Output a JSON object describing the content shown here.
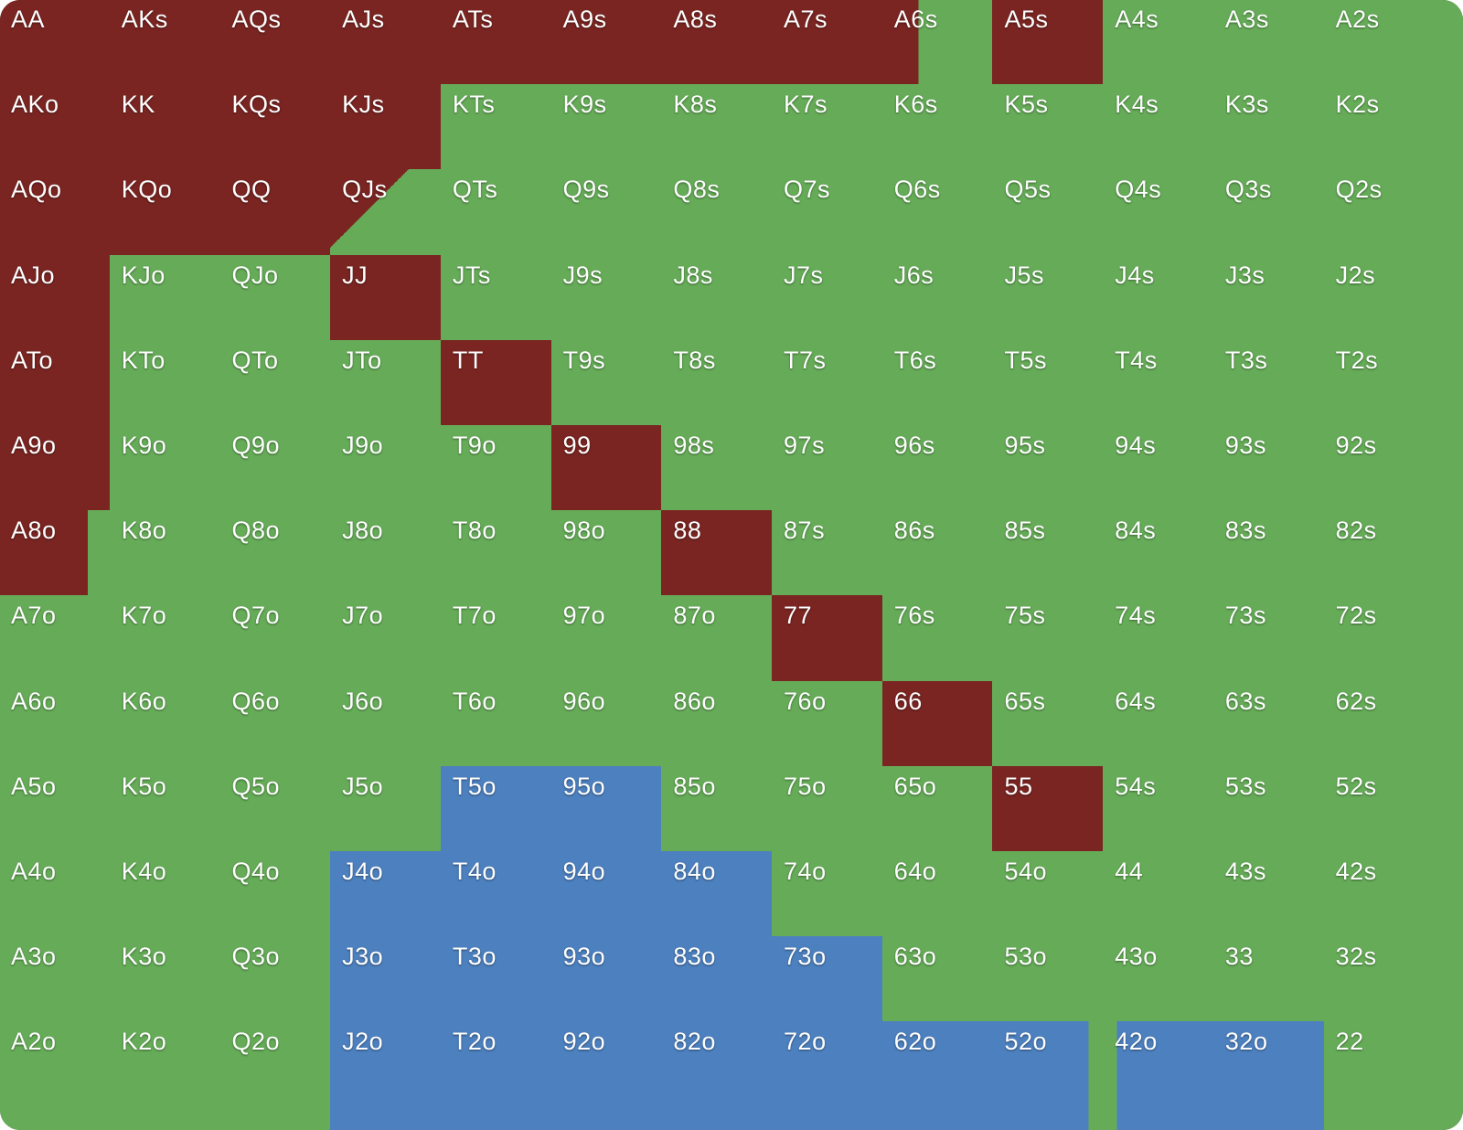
{
  "colors": {
    "red": "#7a2522",
    "green": "#66ac58",
    "blue": "#4d80bf"
  },
  "chart_data": {
    "type": "heatmap",
    "ranks": [
      "A",
      "K",
      "Q",
      "J",
      "T",
      "9",
      "8",
      "7",
      "6",
      "5",
      "4",
      "3",
      "2"
    ],
    "legend_colors": {
      "red": "#7a2522",
      "green": "#66ac58",
      "blue": "#4d80bf"
    },
    "rows": [
      {
        "cells": [
          {
            "h": "AA",
            "c": "red"
          },
          {
            "h": "AKs",
            "c": "red"
          },
          {
            "h": "AQs",
            "c": "red"
          },
          {
            "h": "AJs",
            "c": "red"
          },
          {
            "h": "ATs",
            "c": "red"
          },
          {
            "h": "A9s",
            "c": "red"
          },
          {
            "h": "A8s",
            "c": "red"
          },
          {
            "h": "A7s",
            "c": "red"
          },
          {
            "h": "A6s",
            "mix": [
              {
                "c": "red",
                "pct": 33
              },
              {
                "c": "green",
                "pct": 67
              }
            ],
            "angle": 90
          },
          {
            "h": "A5s",
            "c": "red"
          },
          {
            "h": "A4s",
            "c": "green"
          },
          {
            "h": "A3s",
            "c": "green"
          },
          {
            "h": "A2s",
            "c": "green"
          }
        ]
      },
      {
        "cells": [
          {
            "h": "AKo",
            "c": "red"
          },
          {
            "h": "KK",
            "c": "red"
          },
          {
            "h": "KQs",
            "c": "red"
          },
          {
            "h": "KJs",
            "c": "red"
          },
          {
            "h": "KTs",
            "c": "green"
          },
          {
            "h": "K9s",
            "c": "green"
          },
          {
            "h": "K8s",
            "c": "green"
          },
          {
            "h": "K7s",
            "c": "green"
          },
          {
            "h": "K6s",
            "c": "green"
          },
          {
            "h": "K5s",
            "c": "green"
          },
          {
            "h": "K4s",
            "c": "green"
          },
          {
            "h": "K3s",
            "c": "green"
          },
          {
            "h": "K2s",
            "c": "green"
          }
        ]
      },
      {
        "cells": [
          {
            "h": "AQo",
            "c": "red"
          },
          {
            "h": "KQo",
            "c": "red"
          },
          {
            "h": "QQ",
            "c": "red"
          },
          {
            "h": "QJs",
            "mix": [
              {
                "c": "red",
                "pct": 40
              },
              {
                "c": "green",
                "pct": 60
              }
            ],
            "angle": 135
          },
          {
            "h": "QTs",
            "c": "green"
          },
          {
            "h": "Q9s",
            "c": "green"
          },
          {
            "h": "Q8s",
            "c": "green"
          },
          {
            "h": "Q7s",
            "c": "green"
          },
          {
            "h": "Q6s",
            "c": "green"
          },
          {
            "h": "Q5s",
            "c": "green"
          },
          {
            "h": "Q4s",
            "c": "green"
          },
          {
            "h": "Q3s",
            "c": "green"
          },
          {
            "h": "Q2s",
            "c": "green"
          }
        ]
      },
      {
        "cells": [
          {
            "h": "AJo",
            "c": "red"
          },
          {
            "h": "KJo",
            "c": "green"
          },
          {
            "h": "QJo",
            "c": "green"
          },
          {
            "h": "JJ",
            "c": "red"
          },
          {
            "h": "JTs",
            "c": "green"
          },
          {
            "h": "J9s",
            "c": "green"
          },
          {
            "h": "J8s",
            "c": "green"
          },
          {
            "h": "J7s",
            "c": "green"
          },
          {
            "h": "J6s",
            "c": "green"
          },
          {
            "h": "J5s",
            "c": "green"
          },
          {
            "h": "J4s",
            "c": "green"
          },
          {
            "h": "J3s",
            "c": "green"
          },
          {
            "h": "J2s",
            "c": "green"
          }
        ]
      },
      {
        "cells": [
          {
            "h": "ATo",
            "c": "red"
          },
          {
            "h": "KTo",
            "c": "green"
          },
          {
            "h": "QTo",
            "c": "green"
          },
          {
            "h": "JTo",
            "c": "green"
          },
          {
            "h": "TT",
            "c": "red"
          },
          {
            "h": "T9s",
            "c": "green"
          },
          {
            "h": "T8s",
            "c": "green"
          },
          {
            "h": "T7s",
            "c": "green"
          },
          {
            "h": "T6s",
            "c": "green"
          },
          {
            "h": "T5s",
            "c": "green"
          },
          {
            "h": "T4s",
            "c": "green"
          },
          {
            "h": "T3s",
            "c": "green"
          },
          {
            "h": "T2s",
            "c": "green"
          }
        ]
      },
      {
        "cells": [
          {
            "h": "A9o",
            "c": "red"
          },
          {
            "h": "K9o",
            "c": "green"
          },
          {
            "h": "Q9o",
            "c": "green"
          },
          {
            "h": "J9o",
            "c": "green"
          },
          {
            "h": "T9o",
            "c": "green"
          },
          {
            "h": "99",
            "c": "red"
          },
          {
            "h": "98s",
            "c": "green"
          },
          {
            "h": "97s",
            "c": "green"
          },
          {
            "h": "96s",
            "c": "green"
          },
          {
            "h": "95s",
            "c": "green"
          },
          {
            "h": "94s",
            "c": "green"
          },
          {
            "h": "93s",
            "c": "green"
          },
          {
            "h": "92s",
            "c": "green"
          }
        ]
      },
      {
        "cells": [
          {
            "h": "A8o",
            "mix": [
              {
                "c": "red",
                "pct": 80
              },
              {
                "c": "green",
                "pct": 20
              }
            ],
            "angle": 90
          },
          {
            "h": "K8o",
            "c": "green"
          },
          {
            "h": "Q8o",
            "c": "green"
          },
          {
            "h": "J8o",
            "c": "green"
          },
          {
            "h": "T8o",
            "c": "green"
          },
          {
            "h": "98o",
            "c": "green"
          },
          {
            "h": "88",
            "c": "red"
          },
          {
            "h": "87s",
            "c": "green"
          },
          {
            "h": "86s",
            "c": "green"
          },
          {
            "h": "85s",
            "c": "green"
          },
          {
            "h": "84s",
            "c": "green"
          },
          {
            "h": "83s",
            "c": "green"
          },
          {
            "h": "82s",
            "c": "green"
          }
        ]
      },
      {
        "cells": [
          {
            "h": "A7o",
            "c": "green"
          },
          {
            "h": "K7o",
            "c": "green"
          },
          {
            "h": "Q7o",
            "c": "green"
          },
          {
            "h": "J7o",
            "c": "green"
          },
          {
            "h": "T7o",
            "c": "green"
          },
          {
            "h": "97o",
            "c": "green"
          },
          {
            "h": "87o",
            "c": "green"
          },
          {
            "h": "77",
            "c": "red"
          },
          {
            "h": "76s",
            "c": "green"
          },
          {
            "h": "75s",
            "c": "green"
          },
          {
            "h": "74s",
            "c": "green"
          },
          {
            "h": "73s",
            "c": "green"
          },
          {
            "h": "72s",
            "c": "green"
          }
        ]
      },
      {
        "cells": [
          {
            "h": "A6o",
            "c": "green"
          },
          {
            "h": "K6o",
            "c": "green"
          },
          {
            "h": "Q6o",
            "c": "green"
          },
          {
            "h": "J6o",
            "c": "green"
          },
          {
            "h": "T6o",
            "c": "green"
          },
          {
            "h": "96o",
            "c": "green"
          },
          {
            "h": "86o",
            "c": "green"
          },
          {
            "h": "76o",
            "c": "green"
          },
          {
            "h": "66",
            "c": "red"
          },
          {
            "h": "65s",
            "c": "green"
          },
          {
            "h": "64s",
            "c": "green"
          },
          {
            "h": "63s",
            "c": "green"
          },
          {
            "h": "62s",
            "c": "green"
          }
        ]
      },
      {
        "cells": [
          {
            "h": "A5o",
            "c": "green"
          },
          {
            "h": "K5o",
            "c": "green"
          },
          {
            "h": "Q5o",
            "c": "green"
          },
          {
            "h": "J5o",
            "c": "green"
          },
          {
            "h": "T5o",
            "c": "blue"
          },
          {
            "h": "95o",
            "c": "blue"
          },
          {
            "h": "85o",
            "c": "green"
          },
          {
            "h": "75o",
            "c": "green"
          },
          {
            "h": "65o",
            "c": "green"
          },
          {
            "h": "55",
            "c": "red"
          },
          {
            "h": "54s",
            "c": "green"
          },
          {
            "h": "53s",
            "c": "green"
          },
          {
            "h": "52s",
            "c": "green"
          }
        ]
      },
      {
        "cells": [
          {
            "h": "A4o",
            "c": "green"
          },
          {
            "h": "K4o",
            "c": "green"
          },
          {
            "h": "Q4o",
            "c": "green"
          },
          {
            "h": "J4o",
            "c": "blue"
          },
          {
            "h": "T4o",
            "c": "blue"
          },
          {
            "h": "94o",
            "c": "blue"
          },
          {
            "h": "84o",
            "c": "blue"
          },
          {
            "h": "74o",
            "c": "green"
          },
          {
            "h": "64o",
            "c": "green"
          },
          {
            "h": "54o",
            "c": "green"
          },
          {
            "h": "44",
            "c": "green"
          },
          {
            "h": "43s",
            "c": "green"
          },
          {
            "h": "42s",
            "c": "green"
          }
        ]
      },
      {
        "cells": [
          {
            "h": "A3o",
            "c": "green"
          },
          {
            "h": "K3o",
            "c": "green"
          },
          {
            "h": "Q3o",
            "c": "green"
          },
          {
            "h": "J3o",
            "c": "blue"
          },
          {
            "h": "T3o",
            "c": "blue"
          },
          {
            "h": "93o",
            "c": "blue"
          },
          {
            "h": "83o",
            "c": "blue"
          },
          {
            "h": "73o",
            "c": "blue"
          },
          {
            "h": "63o",
            "c": "green"
          },
          {
            "h": "53o",
            "c": "green"
          },
          {
            "h": "43o",
            "c": "green"
          },
          {
            "h": "33",
            "c": "green"
          },
          {
            "h": "32s",
            "c": "green"
          }
        ]
      },
      {
        "cells": [
          {
            "h": "A2o",
            "c": "green"
          },
          {
            "h": "K2o",
            "c": "green"
          },
          {
            "h": "Q2o",
            "c": "green"
          },
          {
            "h": "J2o",
            "c": "blue"
          },
          {
            "h": "T2o",
            "c": "blue"
          },
          {
            "h": "92o",
            "c": "blue"
          },
          {
            "h": "82o",
            "c": "blue"
          },
          {
            "h": "72o",
            "c": "blue"
          },
          {
            "h": "62o",
            "c": "blue"
          },
          {
            "h": "52o",
            "mix": [
              {
                "c": "blue",
                "pct": 87
              },
              {
                "c": "green",
                "pct": 13
              }
            ],
            "angle": 90
          },
          {
            "h": "42o",
            "mix": [
              {
                "c": "green",
                "pct": 13
              },
              {
                "c": "blue",
                "pct": 87
              }
            ],
            "angle": 90
          },
          {
            "h": "32o",
            "c": "blue"
          },
          {
            "h": "22",
            "c": "green"
          }
        ]
      }
    ]
  }
}
